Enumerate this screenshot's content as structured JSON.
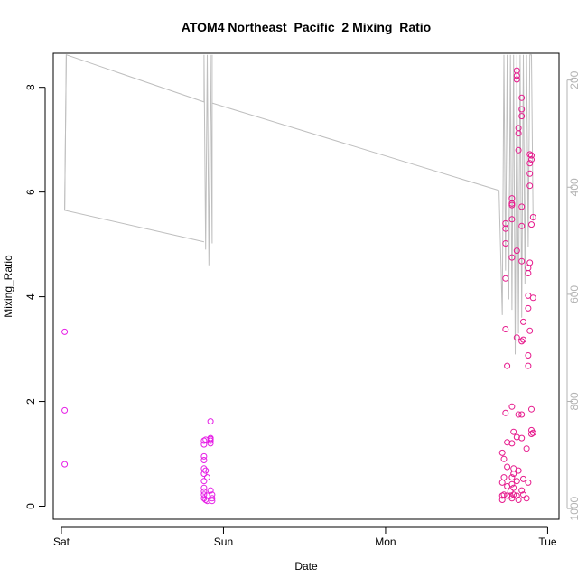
{
  "chart_data": {
    "type": "scatter",
    "title": "ATOM4 Northeast_Pacific_2 Mixing_Ratio",
    "xlabel": "Date",
    "ylabel": "Mixing_Ratio",
    "x_ticks": [
      {
        "day": 0,
        "label": "Sat"
      },
      {
        "day": 1,
        "label": "Sun"
      },
      {
        "day": 2,
        "label": "Mon"
      },
      {
        "day": 3,
        "label": "Tue"
      }
    ],
    "xlim": [
      -0.05,
      3.07
    ],
    "ylim": [
      -0.25,
      8.65
    ],
    "y_ticks": [
      0,
      2,
      4,
      6,
      8
    ],
    "y2_ticks": [
      200,
      400,
      600,
      800,
      1000
    ],
    "y2lim": [
      1020,
      150
    ],
    "colors": {
      "point_a": "#e61fe6",
      "point_b": "#e6198c",
      "line": "#bebebe",
      "axis": "#000000",
      "right_axis": "#b3b3b3"
    },
    "series": [
      {
        "values": [
          [
            0.02,
            3.33
          ],
          [
            0.02,
            1.83
          ],
          [
            0.02,
            0.8
          ],
          [
            0.88,
            1.25
          ],
          [
            0.88,
            1.18
          ],
          [
            0.88,
            0.95
          ],
          [
            0.88,
            0.88
          ],
          [
            0.88,
            0.72
          ],
          [
            0.88,
            0.62
          ],
          [
            0.88,
            0.48
          ],
          [
            0.88,
            0.35
          ],
          [
            0.88,
            0.28
          ],
          [
            0.88,
            0.22
          ],
          [
            0.88,
            0.15
          ],
          [
            0.89,
            0.12
          ],
          [
            0.89,
            1.27
          ],
          [
            0.89,
            0.68
          ],
          [
            0.9,
            0.55
          ],
          [
            0.9,
            0.2
          ],
          [
            0.9,
            0.1
          ],
          [
            0.92,
            1.62
          ],
          [
            0.92,
            1.3
          ],
          [
            0.92,
            1.28
          ],
          [
            0.92,
            1.25
          ],
          [
            0.92,
            1.2
          ],
          [
            0.92,
            0.3
          ],
          [
            0.93,
            0.22
          ],
          [
            0.93,
            0.15
          ],
          [
            0.93,
            0.1
          ]
        ]
      },
      {
        "values": [
          [
            2.72,
            1.02
          ],
          [
            2.72,
            0.45
          ],
          [
            2.72,
            0.2
          ],
          [
            2.72,
            0.12
          ],
          [
            2.73,
            0.9
          ],
          [
            2.73,
            0.55
          ],
          [
            2.73,
            0.22
          ],
          [
            2.74,
            5.4
          ],
          [
            2.74,
            5.3
          ],
          [
            2.74,
            5.02
          ],
          [
            2.74,
            4.35
          ],
          [
            2.74,
            3.38
          ],
          [
            2.74,
            1.78
          ],
          [
            2.75,
            2.68
          ],
          [
            2.75,
            1.22
          ],
          [
            2.75,
            0.75
          ],
          [
            2.75,
            0.38
          ],
          [
            2.75,
            0.2
          ],
          [
            2.77,
            0.28
          ],
          [
            2.77,
            0.2
          ],
          [
            2.78,
            5.88
          ],
          [
            2.78,
            5.78
          ],
          [
            2.78,
            5.75
          ],
          [
            2.78,
            5.48
          ],
          [
            2.78,
            4.75
          ],
          [
            2.78,
            1.9
          ],
          [
            2.78,
            1.2
          ],
          [
            2.78,
            0.55
          ],
          [
            2.78,
            0.42
          ],
          [
            2.78,
            0.15
          ],
          [
            2.79,
            1.42
          ],
          [
            2.79,
            0.72
          ],
          [
            2.79,
            0.62
          ],
          [
            2.79,
            0.35
          ],
          [
            2.79,
            0.22
          ],
          [
            2.81,
            8.32
          ],
          [
            2.81,
            8.22
          ],
          [
            2.81,
            8.15
          ],
          [
            2.81,
            4.88
          ],
          [
            2.81,
            3.22
          ],
          [
            2.81,
            1.32
          ],
          [
            2.81,
            0.48
          ],
          [
            2.81,
            0.2
          ],
          [
            2.82,
            7.22
          ],
          [
            2.82,
            7.12
          ],
          [
            2.82,
            6.8
          ],
          [
            2.82,
            1.75
          ],
          [
            2.82,
            0.68
          ],
          [
            2.82,
            0.12
          ],
          [
            2.84,
            7.8
          ],
          [
            2.84,
            7.58
          ],
          [
            2.84,
            7.45
          ],
          [
            2.84,
            5.72
          ],
          [
            2.84,
            5.35
          ],
          [
            2.84,
            4.68
          ],
          [
            2.84,
            3.15
          ],
          [
            2.84,
            1.75
          ],
          [
            2.84,
            1.3
          ],
          [
            2.84,
            0.3
          ],
          [
            2.85,
            3.52
          ],
          [
            2.85,
            3.18
          ],
          [
            2.85,
            0.52
          ],
          [
            2.85,
            0.22
          ],
          [
            2.87,
            1.1
          ],
          [
            2.87,
            0.15
          ],
          [
            2.88,
            4.55
          ],
          [
            2.88,
            4.45
          ],
          [
            2.88,
            4.02
          ],
          [
            2.88,
            3.78
          ],
          [
            2.88,
            2.88
          ],
          [
            2.88,
            2.68
          ],
          [
            2.88,
            0.45
          ],
          [
            2.89,
            6.72
          ],
          [
            2.89,
            6.55
          ],
          [
            2.89,
            6.35
          ],
          [
            2.89,
            6.12
          ],
          [
            2.89,
            4.65
          ],
          [
            2.89,
            3.35
          ],
          [
            2.9,
            6.7
          ],
          [
            2.9,
            6.62
          ],
          [
            2.9,
            5.38
          ],
          [
            2.9,
            1.85
          ],
          [
            2.9,
            1.45
          ],
          [
            2.9,
            1.38
          ],
          [
            2.91,
            5.52
          ],
          [
            2.91,
            3.98
          ],
          [
            2.91,
            1.4
          ]
        ]
      }
    ],
    "line_series": {
      "values": [
        [
          0.02,
          5.65
        ],
        [
          0.03,
          8.62
        ],
        [
          0.88,
          7.72
        ],
        [
          0.88,
          8.62
        ],
        [
          0.89,
          4.9
        ],
        [
          0.9,
          8.62
        ],
        [
          0.91,
          4.6
        ],
        [
          0.92,
          8.62
        ],
        [
          0.93,
          5.02
        ],
        [
          0.93,
          8.62
        ],
        [
          0.93,
          7.7
        ],
        [
          2.7,
          6.03
        ],
        [
          2.72,
          3.65
        ],
        [
          2.73,
          8.62
        ],
        [
          2.74,
          4.5
        ],
        [
          2.75,
          8.62
        ],
        [
          2.76,
          3.95
        ],
        [
          2.77,
          8.62
        ],
        [
          2.78,
          3.75
        ],
        [
          2.79,
          8.62
        ],
        [
          2.8,
          2.9
        ],
        [
          2.81,
          8.62
        ],
        [
          2.82,
          3.3
        ],
        [
          2.83,
          8.62
        ],
        [
          2.84,
          3.6
        ],
        [
          2.85,
          8.62
        ],
        [
          2.86,
          4.25
        ],
        [
          2.87,
          8.62
        ],
        [
          2.88,
          4.95
        ],
        [
          2.89,
          8.62
        ],
        [
          2.9,
          8.62
        ],
        [
          2.91,
          5.45
        ]
      ],
      "closing": [
        [
          0.03,
          8.62
        ],
        [
          0.02,
          5.65
        ],
        [
          0.88,
          5.05
        ]
      ]
    }
  }
}
